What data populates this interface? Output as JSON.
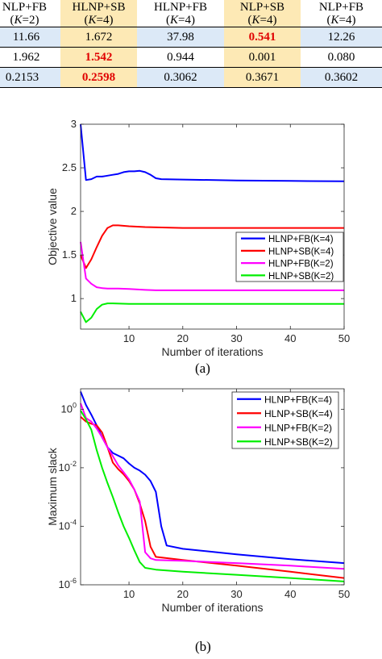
{
  "table": {
    "columns": [
      {
        "name": "NLP+FB",
        "k": "K",
        "kval": "=2)",
        "highlight": false
      },
      {
        "name": "HLNP+SB",
        "k": "K",
        "kval": "=4)",
        "highlight": true
      },
      {
        "name": "HLNP+FB",
        "k": "K",
        "kval": "=4)",
        "highlight": false
      },
      {
        "name": "NLP+SB",
        "k": "K",
        "kval": "=4)",
        "highlight": true
      },
      {
        "name": "NLP+FB",
        "k": "K",
        "kval": "=4)",
        "highlight": false
      }
    ],
    "rows": [
      [
        "11.66",
        "1.672",
        "37.98",
        "0.541",
        "12.26"
      ],
      [
        "1.962",
        "1.542",
        "0.944",
        "0.001",
        "0.080"
      ],
      [
        "0.2153",
        "0.2598",
        "0.3062",
        "0.3671",
        "0.3602"
      ]
    ],
    "bold_red": [
      [
        0,
        3
      ],
      [
        1,
        1
      ],
      [
        2,
        1
      ]
    ],
    "row_bg": [
      "blue",
      "white",
      "blue"
    ]
  },
  "chart_data": [
    {
      "type": "line",
      "caption": "(a)",
      "xlabel": "Number of iterations",
      "ylabel": "Objective value",
      "xlim": [
        1,
        50
      ],
      "ylim": [
        0.65,
        3
      ],
      "xticks": [
        10,
        20,
        30,
        40,
        50
      ],
      "yticks": [
        {
          "v": 1,
          "l": "1"
        },
        {
          "v": 1.5,
          "l": "1.5"
        },
        {
          "v": 2,
          "l": "2"
        },
        {
          "v": 2.5,
          "l": "2.5"
        },
        {
          "v": 3,
          "l": "3"
        }
      ],
      "grid": false,
      "legend_position": "lower-right",
      "series": [
        {
          "name": "HLNP+FB(K=4)",
          "color": "#0000ff",
          "points": [
            [
              1,
              3.0
            ],
            [
              2,
              2.36
            ],
            [
              3,
              2.37
            ],
            [
              4,
              2.4
            ],
            [
              5,
              2.4
            ],
            [
              6,
              2.41
            ],
            [
              7,
              2.42
            ],
            [
              8,
              2.43
            ],
            [
              9,
              2.45
            ],
            [
              10,
              2.46
            ],
            [
              11,
              2.46
            ],
            [
              12,
              2.465
            ],
            [
              13,
              2.45
            ],
            [
              14,
              2.42
            ],
            [
              15,
              2.38
            ],
            [
              16,
              2.37
            ],
            [
              20,
              2.365
            ],
            [
              30,
              2.355
            ],
            [
              40,
              2.35
            ],
            [
              50,
              2.345
            ]
          ]
        },
        {
          "name": "HLNP+SB(K=4)",
          "color": "#ff0000",
          "points": [
            [
              1,
              1.5
            ],
            [
              2,
              1.35
            ],
            [
              3,
              1.45
            ],
            [
              4,
              1.59
            ],
            [
              5,
              1.72
            ],
            [
              6,
              1.81
            ],
            [
              7,
              1.84
            ],
            [
              8,
              1.84
            ],
            [
              10,
              1.83
            ],
            [
              13,
              1.82
            ],
            [
              20,
              1.81
            ],
            [
              30,
              1.81
            ],
            [
              40,
              1.81
            ],
            [
              50,
              1.81
            ]
          ]
        },
        {
          "name": "HLNP+FB(K=2)",
          "color": "#ff00ff",
          "points": [
            [
              1,
              1.65
            ],
            [
              2,
              1.23
            ],
            [
              3,
              1.17
            ],
            [
              4,
              1.13
            ],
            [
              5,
              1.12
            ],
            [
              6,
              1.115
            ],
            [
              8,
              1.115
            ],
            [
              10,
              1.11
            ],
            [
              13,
              1.1
            ],
            [
              15,
              1.095
            ],
            [
              20,
              1.095
            ],
            [
              30,
              1.095
            ],
            [
              40,
              1.095
            ],
            [
              50,
              1.095
            ]
          ]
        },
        {
          "name": "HLNP+SB(K=2)",
          "color": "#00ee00",
          "points": [
            [
              1,
              0.85
            ],
            [
              2,
              0.73
            ],
            [
              3,
              0.78
            ],
            [
              4,
              0.88
            ],
            [
              5,
              0.93
            ],
            [
              6,
              0.945
            ],
            [
              7,
              0.945
            ],
            [
              10,
              0.94
            ],
            [
              20,
              0.94
            ],
            [
              30,
              0.94
            ],
            [
              40,
              0.94
            ],
            [
              50,
              0.94
            ]
          ]
        }
      ]
    },
    {
      "type": "line",
      "caption": "(b)",
      "xlabel": "Number of iterations",
      "ylabel": "Maximum slack",
      "xlim": [
        1,
        50
      ],
      "ylim": [
        1e-06,
        5
      ],
      "yscale": "log",
      "xticks": [
        10,
        20,
        30,
        40,
        50
      ],
      "yticks": [
        {
          "v": 1e-06,
          "b": "10",
          "e": "-6"
        },
        {
          "v": 0.0001,
          "b": "10",
          "e": "-4"
        },
        {
          "v": 0.01,
          "b": "10",
          "e": "-2"
        },
        {
          "v": 1,
          "b": "10",
          "e": "0"
        }
      ],
      "grid": false,
      "legend_position": "upper-right",
      "series": [
        {
          "name": "HLNP+FB(K=4)",
          "color": "#0000ff",
          "points": [
            [
              1,
              4
            ],
            [
              2,
              1.4
            ],
            [
              3,
              0.65
            ],
            [
              4,
              0.28
            ],
            [
              5,
              0.11
            ],
            [
              6,
              0.05
            ],
            [
              7,
              0.032
            ],
            [
              8,
              0.026
            ],
            [
              9,
              0.021
            ],
            [
              10,
              0.014
            ],
            [
              11,
              0.01
            ],
            [
              12,
              0.008
            ],
            [
              13,
              0.0058
            ],
            [
              14,
              0.0035
            ],
            [
              15,
              0.0015
            ],
            [
              16,
              0.0001
            ],
            [
              17,
              2.2e-05
            ],
            [
              20,
              1.7e-05
            ],
            [
              30,
              1.1e-05
            ],
            [
              40,
              7.5e-06
            ],
            [
              50,
              5.5e-06
            ]
          ]
        },
        {
          "name": "HLNP+SB(K=4)",
          "color": "#ff0000",
          "points": [
            [
              1,
              0.55
            ],
            [
              2,
              0.38
            ],
            [
              3,
              0.32
            ],
            [
              4,
              0.28
            ],
            [
              5,
              0.16
            ],
            [
              6,
              0.05
            ],
            [
              7,
              0.015
            ],
            [
              8,
              0.009
            ],
            [
              9,
              0.006
            ],
            [
              10,
              0.0035
            ],
            [
              11,
              0.0018
            ],
            [
              12,
              0.0006
            ],
            [
              13,
              0.00015
            ],
            [
              14,
              2e-05
            ],
            [
              15,
              9e-06
            ],
            [
              20,
              7e-06
            ],
            [
              30,
              4.5e-06
            ],
            [
              40,
              2.8e-06
            ],
            [
              50,
              1.7e-06
            ]
          ]
        },
        {
          "name": "HLNP+FB(K=2)",
          "color": "#ff00ff",
          "points": [
            [
              1,
              1.6
            ],
            [
              2,
              0.5
            ],
            [
              3,
              0.38
            ],
            [
              4,
              0.22
            ],
            [
              5,
              0.11
            ],
            [
              6,
              0.05
            ],
            [
              7,
              0.025
            ],
            [
              8,
              0.012
            ],
            [
              9,
              0.007
            ],
            [
              10,
              0.004
            ],
            [
              11,
              0.0018
            ],
            [
              12,
              0.0007
            ],
            [
              13,
              1.3e-05
            ],
            [
              14,
              8e-06
            ],
            [
              15,
              7e-06
            ],
            [
              20,
              6.6e-06
            ],
            [
              30,
              5.5e-06
            ],
            [
              40,
              4.5e-06
            ],
            [
              50,
              3.5e-06
            ]
          ]
        },
        {
          "name": "HLNP+SB(K=2)",
          "color": "#00ee00",
          "points": [
            [
              1,
              0.9
            ],
            [
              2,
              0.45
            ],
            [
              3,
              0.2
            ],
            [
              4,
              0.04
            ],
            [
              5,
              0.01
            ],
            [
              6,
              0.003
            ],
            [
              7,
              0.001
            ],
            [
              8,
              0.0003
            ],
            [
              9,
              0.0001
            ],
            [
              10,
              4e-05
            ],
            [
              11,
              1.5e-05
            ],
            [
              12,
              6e-06
            ],
            [
              13,
              3.8e-06
            ],
            [
              15,
              3.3e-06
            ],
            [
              20,
              2.8e-06
            ],
            [
              30,
              2.2e-06
            ],
            [
              40,
              1.7e-06
            ],
            [
              50,
              1.3e-06
            ]
          ]
        }
      ]
    }
  ]
}
